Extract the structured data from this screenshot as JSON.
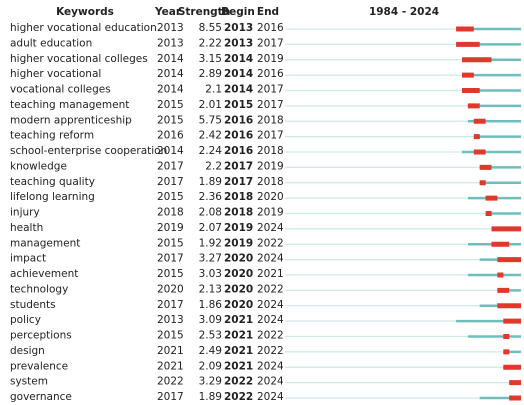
{
  "table": {
    "header": [
      "Keywords",
      "Year",
      "Strength",
      "Begin",
      "End"
    ],
    "timeline": {
      "label": "1984 - 2024",
      "start": 1984,
      "end": 2024
    },
    "rows": [
      [
        "higher vocational education",
        2013,
        8.55,
        2013,
        2016
      ],
      [
        "adult education",
        2013,
        2.22,
        2013,
        2017
      ],
      [
        "higher vocational colleges",
        2014,
        3.15,
        2014,
        2019
      ],
      [
        "higher vocational",
        2014,
        2.89,
        2014,
        2016
      ],
      [
        "vocational colleges",
        2014,
        2.1,
        2014,
        2017
      ],
      [
        "teaching management",
        2015,
        2.01,
        2015,
        2017
      ],
      [
        "modern apprenticeship",
        2015,
        5.75,
        2016,
        2018
      ],
      [
        "teaching reform",
        2016,
        2.42,
        2016,
        2017
      ],
      [
        "school-enterprise cooperation",
        2014,
        2.24,
        2016,
        2018
      ],
      [
        "knowledge",
        2017,
        2.2,
        2017,
        2019
      ],
      [
        "teaching quality",
        2017,
        1.89,
        2017,
        2018
      ],
      [
        "lifelong learning",
        2015,
        2.36,
        2018,
        2020
      ],
      [
        "injury",
        2018,
        2.08,
        2018,
        2019
      ],
      [
        "health",
        2019,
        2.07,
        2019,
        2024
      ],
      [
        "management",
        2015,
        1.92,
        2019,
        2022
      ],
      [
        "impact",
        2017,
        3.27,
        2020,
        2024
      ],
      [
        "achievement",
        2015,
        3.03,
        2020,
        2021
      ],
      [
        "technology",
        2020,
        2.13,
        2020,
        2022
      ],
      [
        "students",
        2017,
        1.86,
        2020,
        2024
      ],
      [
        "policy",
        2013,
        3.09,
        2021,
        2024
      ],
      [
        "perceptions",
        2015,
        2.53,
        2021,
        2022
      ],
      [
        "design",
        2021,
        2.49,
        2021,
        2022
      ],
      [
        "prevalence",
        2021,
        2.09,
        2021,
        2024
      ],
      [
        "system",
        2022,
        3.29,
        2022,
        2024
      ],
      [
        "governance",
        2017,
        1.89,
        2022,
        2024
      ]
    ]
  }
}
